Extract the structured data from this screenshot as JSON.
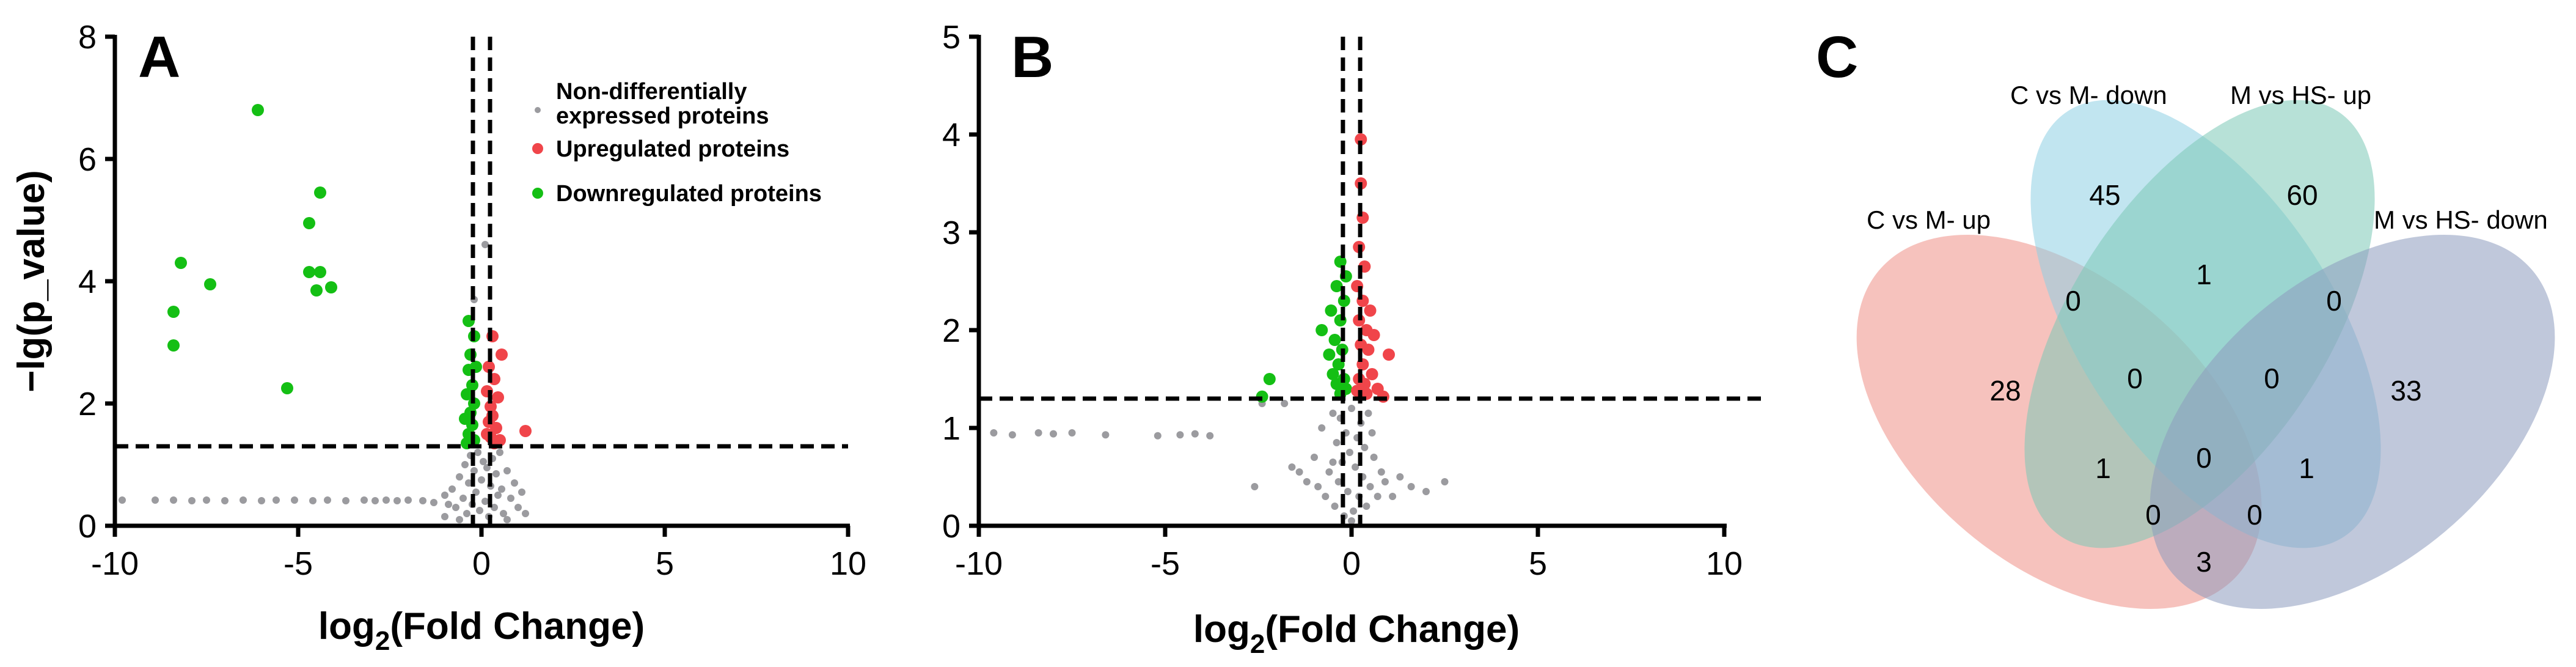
{
  "colors": {
    "nondiff": "#9b9b9f",
    "up": "#f0454a",
    "down": "#14bf14",
    "venn": [
      "#ef8f86",
      "#8ed0e4",
      "#7bc9b6",
      "#8d9bbd"
    ]
  },
  "chart_data": [
    {
      "type": "scatter",
      "panel": "A",
      "xlabel_base": "log",
      "xlabel_sub": "2",
      "xlabel_rest": "(Fold Change)",
      "ylabel": "−lg(p_value)",
      "xlim": [
        -10,
        10
      ],
      "ylim": [
        0,
        8
      ],
      "xticks": [
        "-10",
        "-5",
        "0",
        "5",
        "10"
      ],
      "yticks": [
        "0",
        "2",
        "4",
        "6",
        "8"
      ],
      "thresholds": {
        "x": [
          -0.1,
          0.1
        ],
        "y": 1.3
      },
      "legend": [
        {
          "key": "nondiff",
          "lines": [
            "Non-differentially",
            "expressed proteins"
          ]
        },
        {
          "key": "up",
          "lines": [
            "Upregulated proteins"
          ]
        },
        {
          "key": "down",
          "lines": [
            "Downregulated proteins"
          ]
        }
      ],
      "series": [
        {
          "key": "down",
          "points": [
            [
              -6.1,
              6.8
            ],
            [
              -4.4,
              5.45
            ],
            [
              -4.7,
              4.95
            ],
            [
              -8.2,
              4.3
            ],
            [
              -4.7,
              4.15
            ],
            [
              -4.4,
              4.15
            ],
            [
              -4.5,
              3.85
            ],
            [
              -4.1,
              3.9
            ],
            [
              -7.4,
              3.95
            ],
            [
              -8.4,
              3.5
            ],
            [
              -8.4,
              2.95
            ],
            [
              -5.3,
              2.25
            ],
            [
              -0.35,
              3.35
            ],
            [
              -0.2,
              3.1
            ],
            [
              -0.3,
              2.8
            ],
            [
              -0.15,
              2.6
            ],
            [
              -0.35,
              2.55
            ],
            [
              -0.25,
              2.3
            ],
            [
              -0.4,
              2.15
            ],
            [
              -0.2,
              2.0
            ],
            [
              -0.3,
              1.85
            ],
            [
              -0.45,
              1.75
            ],
            [
              -0.25,
              1.65
            ],
            [
              -0.35,
              1.5
            ],
            [
              -0.2,
              1.4
            ],
            [
              -0.4,
              1.35
            ]
          ]
        },
        {
          "key": "up",
          "points": [
            [
              0.3,
              3.1
            ],
            [
              0.55,
              2.8
            ],
            [
              0.2,
              2.6
            ],
            [
              0.35,
              2.4
            ],
            [
              0.15,
              2.2
            ],
            [
              0.45,
              2.1
            ],
            [
              0.25,
              1.95
            ],
            [
              0.3,
              1.8
            ],
            [
              0.2,
              1.7
            ],
            [
              0.4,
              1.6
            ],
            [
              1.2,
              1.55
            ],
            [
              0.25,
              1.45
            ],
            [
              0.35,
              1.35
            ],
            [
              0.5,
              1.4
            ],
            [
              0.15,
              1.5
            ]
          ]
        },
        {
          "key": "nondiff",
          "points": [
            [
              -9.8,
              0.42
            ],
            [
              -8.9,
              0.42
            ],
            [
              -8.4,
              0.42
            ],
            [
              -7.9,
              0.41
            ],
            [
              -7.5,
              0.42
            ],
            [
              -7.0,
              0.41
            ],
            [
              -6.5,
              0.42
            ],
            [
              -6.0,
              0.41
            ],
            [
              -5.6,
              0.42
            ],
            [
              -5.1,
              0.42
            ],
            [
              -4.6,
              0.41
            ],
            [
              -4.2,
              0.42
            ],
            [
              -3.7,
              0.41
            ],
            [
              -3.2,
              0.42
            ],
            [
              -2.9,
              0.41
            ],
            [
              -2.6,
              0.42
            ],
            [
              -2.3,
              0.41
            ],
            [
              -2.0,
              0.42
            ],
            [
              -1.6,
              0.41
            ],
            [
              -1.3,
              0.38
            ],
            [
              -1.0,
              0.5
            ],
            [
              -0.9,
              0.35
            ],
            [
              -0.8,
              0.6
            ],
            [
              -0.7,
              0.3
            ],
            [
              -0.6,
              0.8
            ],
            [
              -0.5,
              0.45
            ],
            [
              -0.45,
              1.0
            ],
            [
              -0.4,
              0.2
            ],
            [
              -0.35,
              0.7
            ],
            [
              -0.3,
              1.15
            ],
            [
              -0.25,
              0.35
            ],
            [
              -0.2,
              0.9
            ],
            [
              -0.15,
              0.55
            ],
            [
              -0.1,
              1.2
            ],
            [
              -0.05,
              0.25
            ],
            [
              0.0,
              0.75
            ],
            [
              0.05,
              1.05
            ],
            [
              0.1,
              0.4
            ],
            [
              0.15,
              0.95
            ],
            [
              0.2,
              0.15
            ],
            [
              0.25,
              0.65
            ],
            [
              0.3,
              1.1
            ],
            [
              0.35,
              0.3
            ],
            [
              0.4,
              0.85
            ],
            [
              0.45,
              0.5
            ],
            [
              0.5,
              1.2
            ],
            [
              0.55,
              0.6
            ],
            [
              0.6,
              0.2
            ],
            [
              0.7,
              0.9
            ],
            [
              0.8,
              0.45
            ],
            [
              0.9,
              0.7
            ],
            [
              1.0,
              0.3
            ],
            [
              1.1,
              0.55
            ],
            [
              0.1,
              4.6
            ],
            [
              -0.2,
              3.7
            ],
            [
              -0.6,
              0.1
            ],
            [
              0.7,
              0.1
            ],
            [
              1.2,
              0.2
            ],
            [
              -1.0,
              0.15
            ]
          ]
        }
      ]
    },
    {
      "type": "scatter",
      "panel": "B",
      "xlabel_base": "log",
      "xlabel_sub": "2",
      "xlabel_rest": "(Fold Change)",
      "ylabel": "",
      "xlim": [
        -10,
        10
      ],
      "ylim": [
        0,
        5
      ],
      "xticks": [
        "-10",
        "-5",
        "0",
        "5",
        "10"
      ],
      "yticks": [
        "0",
        "1",
        "2",
        "3",
        "4",
        "5"
      ],
      "thresholds": {
        "x": [
          -0.1,
          0.1
        ],
        "y": 1.3
      },
      "series": [
        {
          "key": "down",
          "points": [
            [
              -0.3,
              2.7
            ],
            [
              -0.15,
              2.55
            ],
            [
              -0.4,
              2.45
            ],
            [
              -0.2,
              2.3
            ],
            [
              -0.55,
              2.2
            ],
            [
              -0.3,
              2.1
            ],
            [
              -0.8,
              2.0
            ],
            [
              -0.45,
              1.9
            ],
            [
              -0.25,
              1.8
            ],
            [
              -0.6,
              1.75
            ],
            [
              -0.35,
              1.65
            ],
            [
              -0.5,
              1.55
            ],
            [
              -0.2,
              1.5
            ],
            [
              -0.4,
              1.45
            ],
            [
              -0.3,
              1.35
            ],
            [
              -0.15,
              1.4
            ],
            [
              -2.2,
              1.5
            ],
            [
              -2.4,
              1.32
            ]
          ]
        },
        {
          "key": "up",
          "points": [
            [
              0.25,
              3.95
            ],
            [
              0.25,
              3.5
            ],
            [
              0.3,
              3.15
            ],
            [
              0.2,
              2.85
            ],
            [
              0.35,
              2.65
            ],
            [
              0.15,
              2.45
            ],
            [
              0.3,
              2.3
            ],
            [
              0.5,
              2.2
            ],
            [
              0.2,
              2.1
            ],
            [
              0.4,
              2.0
            ],
            [
              0.6,
              1.95
            ],
            [
              0.25,
              1.85
            ],
            [
              0.45,
              1.8
            ],
            [
              1.0,
              1.75
            ],
            [
              0.3,
              1.65
            ],
            [
              0.55,
              1.55
            ],
            [
              0.2,
              1.5
            ],
            [
              0.35,
              1.45
            ],
            [
              0.7,
              1.4
            ],
            [
              0.4,
              1.35
            ],
            [
              0.85,
              1.32
            ],
            [
              0.15,
              1.38
            ]
          ]
        },
        {
          "key": "nondiff",
          "points": [
            [
              -9.6,
              0.95
            ],
            [
              -9.1,
              0.93
            ],
            [
              -8.4,
              0.95
            ],
            [
              -8.0,
              0.94
            ],
            [
              -7.5,
              0.95
            ],
            [
              -6.6,
              0.93
            ],
            [
              -5.2,
              0.92
            ],
            [
              -4.6,
              0.93
            ],
            [
              -4.2,
              0.94
            ],
            [
              -3.8,
              0.92
            ],
            [
              -2.6,
              0.4
            ],
            [
              -2.4,
              1.25
            ],
            [
              -1.8,
              1.25
            ],
            [
              -1.6,
              0.6
            ],
            [
              -1.4,
              0.55
            ],
            [
              -1.2,
              0.45
            ],
            [
              -1.0,
              0.7
            ],
            [
              -0.9,
              0.4
            ],
            [
              -0.8,
              1.0
            ],
            [
              -0.7,
              0.3
            ],
            [
              -0.6,
              0.55
            ],
            [
              -0.5,
              1.15
            ],
            [
              -0.45,
              0.2
            ],
            [
              -0.4,
              0.85
            ],
            [
              -0.35,
              0.45
            ],
            [
              -0.3,
              1.1
            ],
            [
              -0.25,
              0.65
            ],
            [
              -0.2,
              0.1
            ],
            [
              -0.15,
              0.95
            ],
            [
              -0.1,
              0.35
            ],
            [
              -0.05,
              0.75
            ],
            [
              0.0,
              1.2
            ],
            [
              0.05,
              0.15
            ],
            [
              0.1,
              0.6
            ],
            [
              0.15,
              0.9
            ],
            [
              0.2,
              0.3
            ],
            [
              0.25,
              1.05
            ],
            [
              0.3,
              0.5
            ],
            [
              0.35,
              0.8
            ],
            [
              0.4,
              0.2
            ],
            [
              0.45,
              1.15
            ],
            [
              0.5,
              0.4
            ],
            [
              0.6,
              0.7
            ],
            [
              0.7,
              0.3
            ],
            [
              0.8,
              0.55
            ],
            [
              0.9,
              0.45
            ],
            [
              1.1,
              0.3
            ],
            [
              1.3,
              0.5
            ],
            [
              1.6,
              0.4
            ],
            [
              2.0,
              0.35
            ],
            [
              2.5,
              0.45
            ],
            [
              0.0,
              0.05
            ],
            [
              -0.5,
              0.65
            ],
            [
              0.55,
              0.95
            ]
          ]
        }
      ]
    },
    {
      "type": "venn",
      "panel": "C",
      "sets": [
        "C vs M- up",
        "C vs M- down",
        "M vs HS- up",
        "M vs HS- down"
      ],
      "regions": {
        "a_only": "28",
        "b_only": "45",
        "c_only": "60",
        "d_only": "33",
        "ab": "0",
        "bc": "1",
        "cd": "0",
        "ac": "0",
        "bd": "0",
        "abc": "1",
        "bcd": "1",
        "ad": "3",
        "abd": "0",
        "acd": "0",
        "abcd": "0"
      }
    }
  ]
}
